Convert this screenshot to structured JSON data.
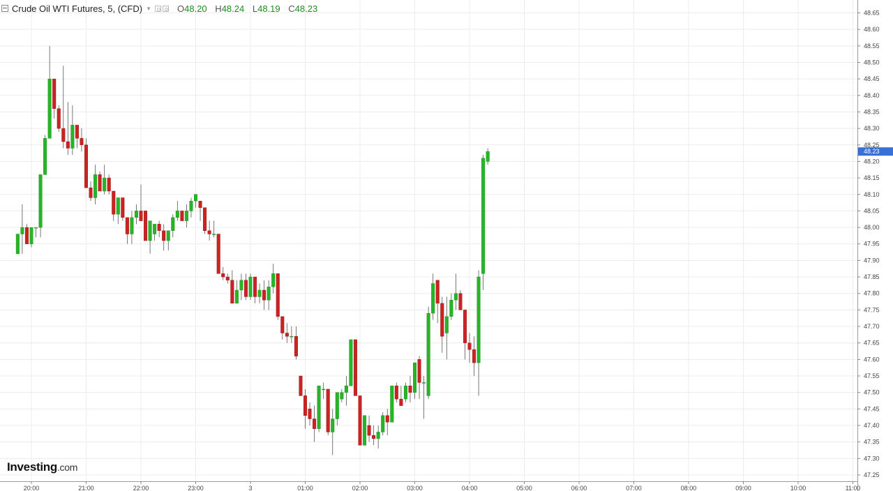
{
  "header": {
    "title": "Crude Oil WTI Futures, 5, (CFD)",
    "ohlc": [
      {
        "label": "O",
        "value": "48.20"
      },
      {
        "label": "H",
        "value": "48.24"
      },
      {
        "label": "L",
        "value": "48.19"
      },
      {
        "label": "C",
        "value": "48.23"
      }
    ]
  },
  "logo": {
    "brand": "Investing",
    "suffix": ".com"
  },
  "colors": {
    "up": "#26b526",
    "down": "#cc2222",
    "grid": "#ececec",
    "price_tag": "#3a6fd8",
    "wick": "#555555"
  },
  "chart_data": {
    "type": "candlestick",
    "x_tick_labels": [
      "20:00",
      "21:00",
      "22:00",
      "23:00",
      "3",
      "01:00",
      "02:00",
      "03:00",
      "04:00",
      "05:00",
      "06:00",
      "07:00",
      "08:00",
      "09:00",
      "10:00",
      "11:00"
    ],
    "y_tick_labels": [
      "48.65",
      "48.60",
      "48.55",
      "48.50",
      "48.45",
      "48.40",
      "48.35",
      "48.30",
      "48.25",
      "48.20",
      "48.15",
      "48.10",
      "48.05",
      "48.00",
      "47.95",
      "47.90",
      "47.85",
      "47.80",
      "47.75",
      "47.70",
      "47.65",
      "47.60",
      "47.55",
      "47.50",
      "47.45",
      "47.40",
      "47.35",
      "47.30",
      "47.25"
    ],
    "ylim": [
      47.23,
      48.68
    ],
    "bar_interval_minutes": 5,
    "first_bar_time": "19:45",
    "last_price": "48.23",
    "candles": [
      [
        47.92,
        47.98,
        47.92,
        47.98
      ],
      [
        47.98,
        48.07,
        47.92,
        48.0
      ],
      [
        48.0,
        48.01,
        47.95,
        47.95
      ],
      [
        47.95,
        48.0,
        47.94,
        48.0
      ],
      [
        48.0,
        48.0,
        47.97,
        48.0
      ],
      [
        48.0,
        48.16,
        47.97,
        48.16
      ],
      [
        48.16,
        48.28,
        48.16,
        48.27
      ],
      [
        48.27,
        48.55,
        48.27,
        48.45
      ],
      [
        48.45,
        48.45,
        48.33,
        48.36
      ],
      [
        48.36,
        48.37,
        48.29,
        48.3
      ],
      [
        48.3,
        48.49,
        48.24,
        48.26
      ],
      [
        48.26,
        48.38,
        48.22,
        48.24
      ],
      [
        48.24,
        48.37,
        48.22,
        48.31
      ],
      [
        48.31,
        48.31,
        48.24,
        48.27
      ],
      [
        48.27,
        48.3,
        48.23,
        48.25
      ],
      [
        48.25,
        48.27,
        48.12,
        48.12
      ],
      [
        48.12,
        48.14,
        48.08,
        48.09
      ],
      [
        48.09,
        48.19,
        48.07,
        48.16
      ],
      [
        48.16,
        48.17,
        48.11,
        48.11
      ],
      [
        48.11,
        48.19,
        48.1,
        48.15
      ],
      [
        48.15,
        48.16,
        48.1,
        48.11
      ],
      [
        48.11,
        48.11,
        48.02,
        48.04
      ],
      [
        48.04,
        48.08,
        48.01,
        48.09
      ],
      [
        48.09,
        48.09,
        48.02,
        48.03
      ],
      [
        48.03,
        48.03,
        47.95,
        47.98
      ],
      [
        47.98,
        48.05,
        47.95,
        48.03
      ],
      [
        48.03,
        48.07,
        48.01,
        48.05
      ],
      [
        48.05,
        48.13,
        48.03,
        48.02
      ],
      [
        48.05,
        48.05,
        47.96,
        47.96
      ],
      [
        47.96,
        48.02,
        47.92,
        48.02
      ],
      [
        47.98,
        48.01,
        47.96,
        48.01
      ],
      [
        48.01,
        48.02,
        47.97,
        47.99
      ],
      [
        47.99,
        48.01,
        47.93,
        47.96
      ],
      [
        47.96,
        47.99,
        47.93,
        47.99
      ],
      [
        47.99,
        48.04,
        47.97,
        48.03
      ],
      [
        48.03,
        48.08,
        48.02,
        48.05
      ],
      [
        48.05,
        48.05,
        48.02,
        48.02
      ],
      [
        48.02,
        48.07,
        48.0,
        48.05
      ],
      [
        48.05,
        48.09,
        48.03,
        48.08
      ],
      [
        48.08,
        48.1,
        48.06,
        48.1
      ],
      [
        48.08,
        48.08,
        48.02,
        48.06
      ],
      [
        48.06,
        48.06,
        47.98,
        47.99
      ],
      [
        47.99,
        48.02,
        47.96,
        47.98
      ],
      [
        47.98,
        48.02,
        47.97,
        47.98
      ],
      [
        47.98,
        47.98,
        47.86,
        47.86
      ],
      [
        47.86,
        47.88,
        47.84,
        47.85
      ],
      [
        47.85,
        47.86,
        47.83,
        47.84
      ],
      [
        47.84,
        47.87,
        47.77,
        47.77
      ],
      [
        47.77,
        47.84,
        47.77,
        47.81
      ],
      [
        47.81,
        47.86,
        47.78,
        47.84
      ],
      [
        47.84,
        47.86,
        47.78,
        47.79
      ],
      [
        47.79,
        47.86,
        47.78,
        47.85
      ],
      [
        47.85,
        47.85,
        47.77,
        47.79
      ],
      [
        47.79,
        47.83,
        47.77,
        47.81
      ],
      [
        47.81,
        47.84,
        47.75,
        47.78
      ],
      [
        47.78,
        47.84,
        47.75,
        47.82
      ],
      [
        47.82,
        47.89,
        47.8,
        47.86
      ],
      [
        47.86,
        47.86,
        47.72,
        47.73
      ],
      [
        47.73,
        47.73,
        47.66,
        47.68
      ],
      [
        47.68,
        47.71,
        47.65,
        47.67
      ],
      [
        47.67,
        47.7,
        47.65,
        47.67
      ],
      [
        47.67,
        47.7,
        47.6,
        47.61
      ],
      [
        47.55,
        47.55,
        47.49,
        47.49
      ],
      [
        47.49,
        47.51,
        47.39,
        47.43
      ],
      [
        47.45,
        47.47,
        47.4,
        47.42
      ],
      [
        47.42,
        47.46,
        47.35,
        47.39
      ],
      [
        47.39,
        47.52,
        47.38,
        47.52
      ],
      [
        47.51,
        47.53,
        47.48,
        47.51
      ],
      [
        47.51,
        47.51,
        47.37,
        47.38
      ],
      [
        47.38,
        47.45,
        47.31,
        47.42
      ],
      [
        47.42,
        47.5,
        47.4,
        47.5
      ],
      [
        47.48,
        47.51,
        47.47,
        47.5
      ],
      [
        47.5,
        47.55,
        47.46,
        47.52
      ],
      [
        47.52,
        47.66,
        47.52,
        47.66
      ],
      [
        47.66,
        47.66,
        47.49,
        47.49
      ],
      [
        47.49,
        47.49,
        47.34,
        47.34
      ],
      [
        47.34,
        47.43,
        47.34,
        47.43
      ],
      [
        47.4,
        47.43,
        47.35,
        47.37
      ],
      [
        47.37,
        47.4,
        47.34,
        47.36
      ],
      [
        47.36,
        47.4,
        47.33,
        47.38
      ],
      [
        47.38,
        47.44,
        47.37,
        47.43
      ],
      [
        47.43,
        47.45,
        47.37,
        47.41
      ],
      [
        47.41,
        47.52,
        47.41,
        47.52
      ],
      [
        47.52,
        47.53,
        47.47,
        47.48
      ],
      [
        47.48,
        47.52,
        47.46,
        47.46
      ],
      [
        47.48,
        47.53,
        47.47,
        47.52
      ],
      [
        47.52,
        47.55,
        47.47,
        47.5
      ],
      [
        47.5,
        47.59,
        47.48,
        47.59
      ],
      [
        47.6,
        47.61,
        47.48,
        47.53
      ],
      [
        47.53,
        47.55,
        47.42,
        47.53
      ],
      [
        47.49,
        47.76,
        47.48,
        47.74
      ],
      [
        47.74,
        47.86,
        47.72,
        47.83
      ],
      [
        47.84,
        47.84,
        47.71,
        47.77
      ],
      [
        47.77,
        47.79,
        47.62,
        47.67
      ],
      [
        47.68,
        47.79,
        47.6,
        47.73
      ],
      [
        47.73,
        47.8,
        47.72,
        47.78
      ],
      [
        47.78,
        47.86,
        47.75,
        47.8
      ],
      [
        47.8,
        47.81,
        47.75,
        47.75
      ],
      [
        47.75,
        47.75,
        47.6,
        47.65
      ],
      [
        47.65,
        47.68,
        47.59,
        47.63
      ],
      [
        47.63,
        47.67,
        47.55,
        47.59
      ],
      [
        47.59,
        47.87,
        47.49,
        47.85
      ],
      [
        47.86,
        48.22,
        47.81,
        48.21
      ],
      [
        48.2,
        48.24,
        48.19,
        48.23
      ]
    ]
  }
}
